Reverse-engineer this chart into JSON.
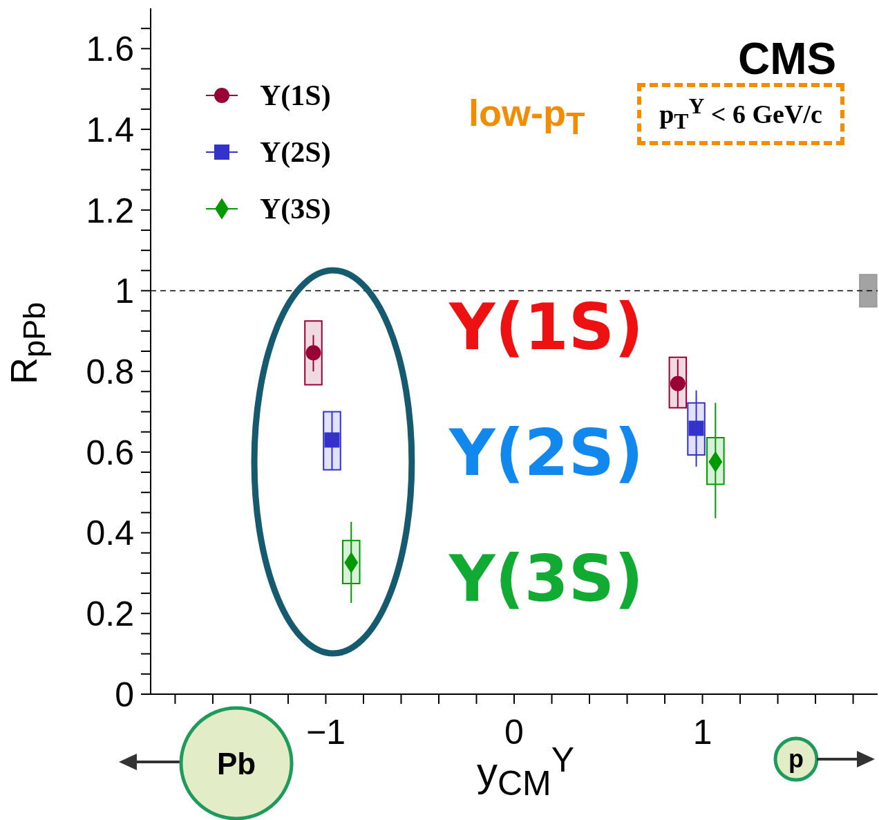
{
  "chart_data": {
    "type": "scatter",
    "ylabel": "R$_{pPb}$",
    "xlabel": "y$_{CM}$$^{Υ}$",
    "xlim": [
      -1.93,
      1.93
    ],
    "ylim": [
      0,
      1.7
    ],
    "xticks": [
      {
        "value": -1.8,
        "label": null
      },
      {
        "value": -1.6,
        "label": null
      },
      {
        "value": -1.4,
        "label": null
      },
      {
        "value": -1.2,
        "label": null
      },
      {
        "value": -1,
        "label": "−1"
      },
      {
        "value": -0.8,
        "label": null
      },
      {
        "value": -0.6,
        "label": null
      },
      {
        "value": -0.4,
        "label": null
      },
      {
        "value": -0.2,
        "label": null
      },
      0,
      {
        "value": 0.2,
        "label": null
      },
      {
        "value": 0.4,
        "label": null
      },
      {
        "value": 0.6,
        "label": null
      },
      {
        "value": 0.8,
        "label": null
      },
      1,
      {
        "value": 1.2,
        "label": null
      },
      {
        "value": 1.4,
        "label": null
      },
      {
        "value": 1.6,
        "label": null
      },
      {
        "value": 1.8,
        "label": null
      }
    ],
    "yticks": [
      0,
      {
        "value": 0.05,
        "label": null
      },
      {
        "value": 0.1,
        "label": null
      },
      {
        "value": 0.15,
        "label": null
      },
      0.2,
      {
        "value": 0.25,
        "label": null
      },
      {
        "value": 0.3,
        "label": null
      },
      {
        "value": 0.35,
        "label": null
      },
      0.4,
      {
        "value": 0.45,
        "label": null
      },
      {
        "value": 0.5,
        "label": null
      },
      {
        "value": 0.55,
        "label": null
      },
      0.6,
      {
        "value": 0.65,
        "label": null
      },
      {
        "value": 0.7,
        "label": null
      },
      {
        "value": 0.75,
        "label": null
      },
      0.8,
      {
        "value": 0.85,
        "label": null
      },
      {
        "value": 0.9,
        "label": null
      },
      {
        "value": 0.95,
        "label": null
      },
      1,
      {
        "value": 1.05,
        "label": null
      },
      {
        "value": 1.1,
        "label": null
      },
      {
        "value": 1.15,
        "label": null
      },
      1.2,
      {
        "value": 1.25,
        "label": null
      },
      {
        "value": 1.3,
        "label": null
      },
      {
        "value": 1.35,
        "label": null
      },
      1.4,
      {
        "value": 1.45,
        "label": null
      },
      {
        "value": 1.5,
        "label": null
      },
      {
        "value": 1.55,
        "label": null
      },
      1.6,
      {
        "value": 1.65,
        "label": null
      }
    ],
    "legend": "top left",
    "ref_lines": [
      {
        "axis": "y",
        "value": 1,
        "line_style": "dashed",
        "color": "#000000"
      }
    ],
    "series": [
      {
        "type": "bar",
        "color": "#990033",
        "x": [
          -1.066,
          0.869
        ],
        "base": [
          0.767,
          0.71
        ],
        "values": [
          0.158,
          0.125
        ]
      },
      {
        "type": "bar",
        "color": "#3333cc",
        "x": [
          -0.967,
          0.967
        ],
        "base": [
          0.556,
          0.593
        ],
        "values": [
          0.144,
          0.129
        ]
      },
      {
        "type": "bar",
        "color": "#009900",
        "x": [
          -0.865,
          1.069
        ],
        "base": [
          0.274,
          0.52
        ],
        "values": [
          0.107,
          0.116
        ]
      },
      {
        "type": "bar",
        "color": "#999999",
        "x": [
          1.88
        ],
        "base": [
          0.96
        ],
        "values": [
          0.08
        ]
      },
      {
        "name": "Υ(1S)",
        "color": "#990033",
        "marker": "circle",
        "x": [
          -1.066,
          0.869
        ],
        "values": [
          0.846,
          0.77
        ],
        "errors": [
          [
            0.8,
            0.89
          ],
          [
            0.71,
            0.83
          ]
        ]
      },
      {
        "name": "Υ(2S)",
        "color": "#3333cc",
        "marker": "square",
        "x": [
          -0.967,
          0.967
        ],
        "values": [
          0.63,
          0.659
        ],
        "errors": [
          [
            0.556,
            0.7
          ],
          [
            0.564,
            0.753
          ]
        ]
      },
      {
        "name": "Υ(3S)",
        "color": "#009900",
        "marker": "diamond",
        "x": [
          -0.865,
          1.069
        ],
        "values": [
          0.326,
          0.576
        ],
        "errors": [
          [
            0.226,
            0.427
          ],
          [
            0.436,
            0.722
          ]
        ]
      }
    ],
    "annotations": [
      "CMS",
      "low-p$_{T}$",
      "p$_{T}$$^{Υ}$ < 6 GeV/c",
      "Υ(1S)",
      "Υ(2S)",
      "Υ(3S)",
      "Pb",
      "p"
    ]
  }
}
